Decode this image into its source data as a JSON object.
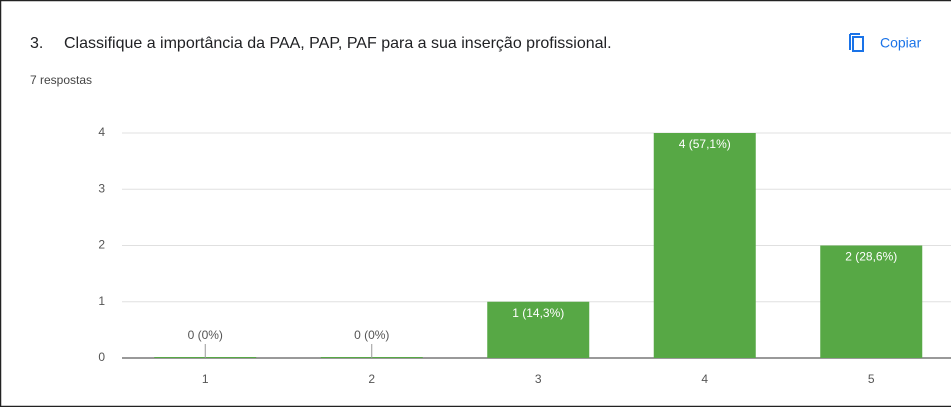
{
  "question_number": "3.",
  "copy_button": "Copiar",
  "chart_data": {
    "type": "bar",
    "title": "Classifique a importância da PAA, PAP, PAF para a sua inserção profissional.",
    "subtitle": "7 respostas",
    "categories": [
      "1",
      "2",
      "3",
      "4",
      "5"
    ],
    "values": [
      0,
      0,
      1,
      4,
      2
    ],
    "value_labels": [
      "0 (0%)",
      "0 (0%)",
      "1 (14,3%)",
      "4 (57,1%)",
      "2 (28,6%)"
    ],
    "color": "#57a845",
    "ylim": [
      0,
      4
    ],
    "yticks": [
      0,
      1,
      2,
      3,
      4
    ],
    "grid": true
  }
}
